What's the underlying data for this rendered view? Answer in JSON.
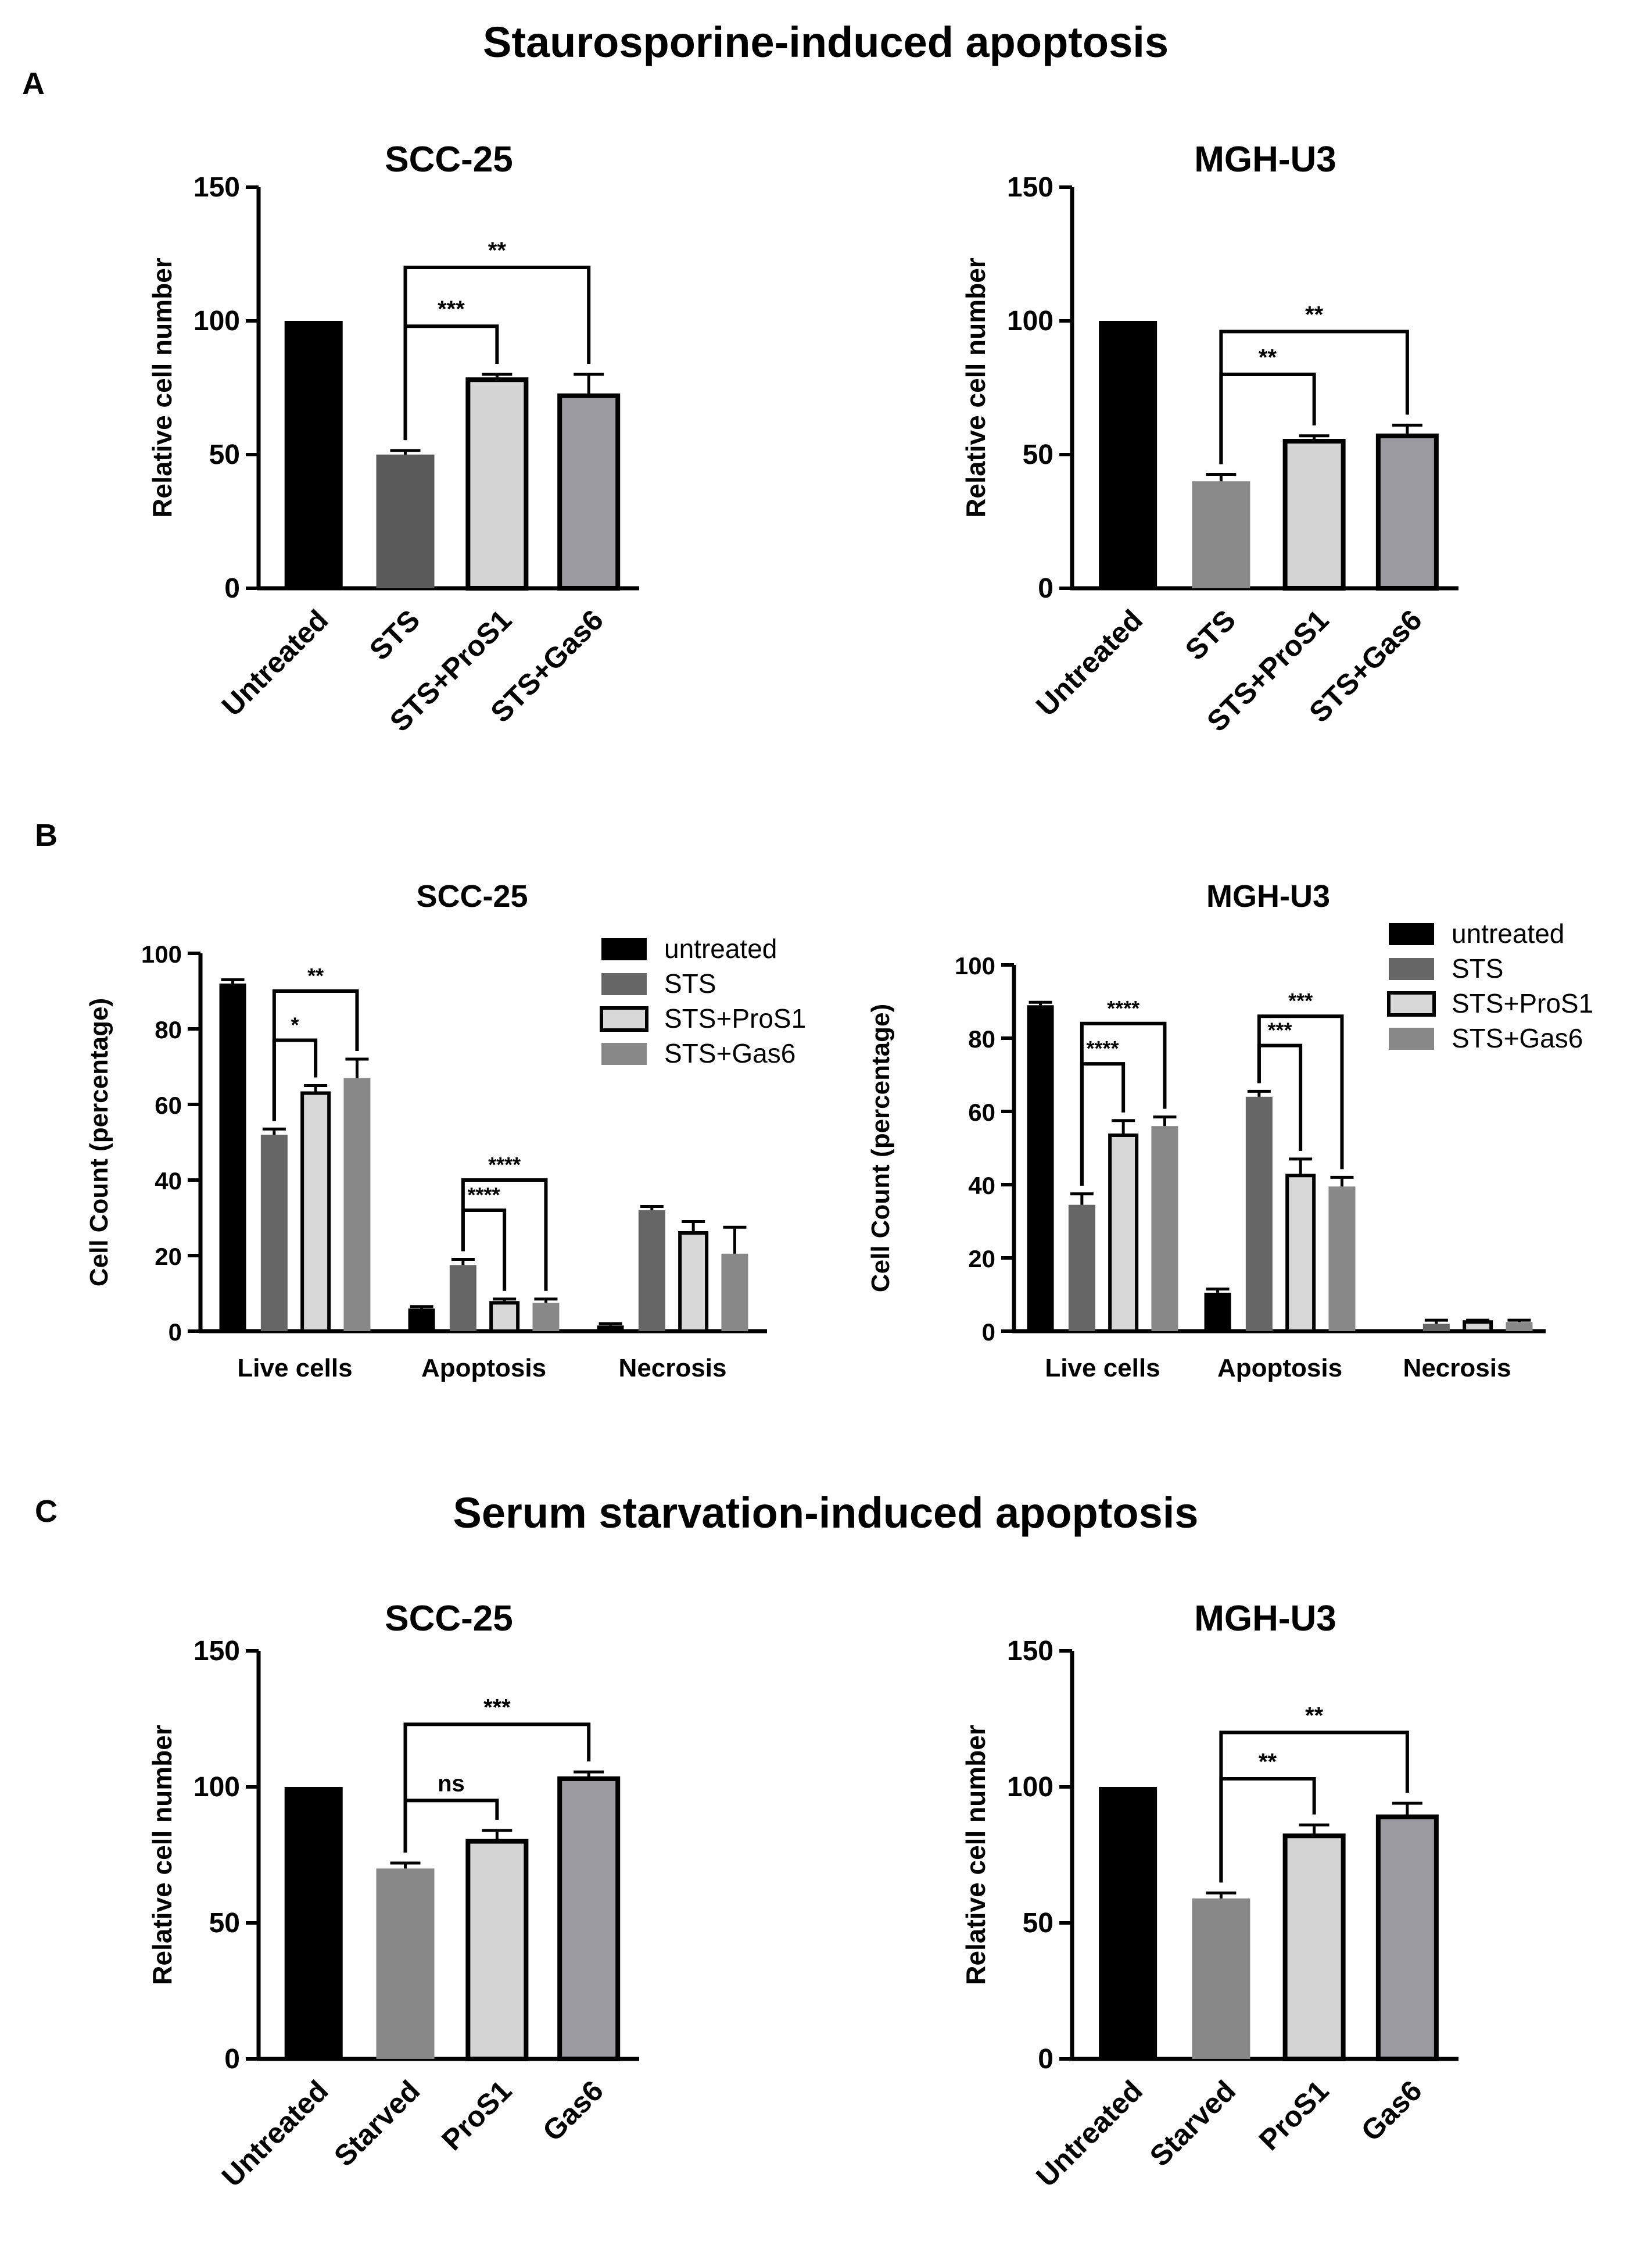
{
  "sections": {
    "A": {
      "letter": "A",
      "title": "Staurosporine-induced apoptosis"
    },
    "B": {
      "letter": "B"
    },
    "C": {
      "letter": "C",
      "title": "Serum starvation-induced apoptosis"
    }
  },
  "chart_data": [
    {
      "id": "A-left",
      "panel": "A",
      "type": "bar",
      "title": "SCC-25",
      "ylabel": "Relative cell number",
      "ylim": [
        0,
        150
      ],
      "yticks": [
        0,
        50,
        100,
        150
      ],
      "categories": [
        "Untreated",
        "STS",
        "STS+ProS1",
        "STS+Gas6"
      ],
      "values": [
        100,
        50,
        78,
        72
      ],
      "errors": [
        0,
        1.5,
        2,
        8
      ],
      "colors": [
        "#000000",
        "#5a5a5a",
        "#d4d4d4",
        "#9a9aa0"
      ],
      "significance": [
        {
          "from": 1,
          "to": 2,
          "label": "***",
          "y": 98
        },
        {
          "from": 1,
          "to": 3,
          "label": "**",
          "y": 120
        }
      ]
    },
    {
      "id": "A-right",
      "panel": "A",
      "type": "bar",
      "title": "MGH-U3",
      "ylabel": "Relative cell number",
      "ylim": [
        0,
        150
      ],
      "yticks": [
        0,
        50,
        100,
        150
      ],
      "categories": [
        "Untreated",
        "STS",
        "STS+ProS1",
        "STS+Gas6"
      ],
      "values": [
        100,
        40,
        55,
        57
      ],
      "errors": [
        0,
        2.5,
        2,
        4
      ],
      "colors": [
        "#000000",
        "#8a8a8a",
        "#d4d4d4",
        "#9a9aa0"
      ],
      "significance": [
        {
          "from": 1,
          "to": 2,
          "label": "**",
          "y": 80
        },
        {
          "from": 1,
          "to": 3,
          "label": "**",
          "y": 96
        }
      ]
    },
    {
      "id": "B-left",
      "panel": "B",
      "type": "grouped-bar",
      "title": "SCC-25",
      "ylabel": "Cell Count (percentage)",
      "ylim": [
        0,
        100
      ],
      "yticks": [
        0,
        20,
        40,
        60,
        80,
        100
      ],
      "categories": [
        "Live cells",
        "Apoptosis",
        "Necrosis"
      ],
      "legend_position": "top-right",
      "series": [
        {
          "name": "untreated",
          "color": "#000000",
          "values": [
            92,
            6,
            1.5
          ],
          "errors": [
            1,
            0.5,
            0.5
          ]
        },
        {
          "name": "STS",
          "color": "#666666",
          "values": [
            52,
            17.5,
            32
          ],
          "errors": [
            1.5,
            1.5,
            1
          ]
        },
        {
          "name": "STS+ProS1",
          "color": "#d8d8d8",
          "values": [
            63,
            7.5,
            26
          ],
          "errors": [
            2,
            1,
            3
          ]
        },
        {
          "name": "STS+Gas6",
          "color": "#888888",
          "values": [
            67,
            7.5,
            20.5
          ],
          "errors": [
            5,
            1,
            7
          ]
        }
      ],
      "significance": [
        {
          "group": 0,
          "from": 1,
          "to": 2,
          "label": "*",
          "y": 77
        },
        {
          "group": 0,
          "from": 1,
          "to": 3,
          "label": "**",
          "y": 90
        },
        {
          "group": 1,
          "from": 1,
          "to": 2,
          "label": "****",
          "y": 32
        },
        {
          "group": 1,
          "from": 1,
          "to": 3,
          "label": "****",
          "y": 40
        }
      ]
    },
    {
      "id": "B-right",
      "panel": "B",
      "type": "grouped-bar",
      "title": "MGH-U3",
      "ylabel": "Cell Count (percentage)",
      "ylim": [
        0,
        100
      ],
      "yticks": [
        0,
        20,
        40,
        60,
        80,
        100
      ],
      "categories": [
        "Live cells",
        "Apoptosis",
        "Necrosis"
      ],
      "legend_position": "top-right",
      "series": [
        {
          "name": "untreated",
          "color": "#000000",
          "values": [
            89,
            10.5,
            0
          ],
          "errors": [
            0.8,
            1,
            0
          ]
        },
        {
          "name": "STS",
          "color": "#666666",
          "values": [
            34.5,
            64,
            2
          ],
          "errors": [
            3,
            1.5,
            1
          ]
        },
        {
          "name": "STS+ProS1",
          "color": "#d8d8d8",
          "values": [
            53.5,
            42.5,
            2.5
          ],
          "errors": [
            4,
            4.5,
            0.5
          ]
        },
        {
          "name": "STS+Gas6",
          "color": "#888888",
          "values": [
            56,
            39.5,
            2.5
          ],
          "errors": [
            2.5,
            2.5,
            0.5
          ]
        }
      ],
      "significance": [
        {
          "group": 0,
          "from": 1,
          "to": 2,
          "label": "****",
          "y": 73
        },
        {
          "group": 0,
          "from": 1,
          "to": 3,
          "label": "****",
          "y": 84
        },
        {
          "group": 1,
          "from": 1,
          "to": 2,
          "label": "***",
          "y": 78
        },
        {
          "group": 1,
          "from": 1,
          "to": 3,
          "label": "***",
          "y": 86
        }
      ]
    },
    {
      "id": "C-left",
      "panel": "C",
      "type": "bar",
      "title": "SCC-25",
      "ylabel": "Relative cell number",
      "ylim": [
        0,
        150
      ],
      "yticks": [
        0,
        50,
        100,
        150
      ],
      "categories": [
        "Untreated",
        "Starved",
        "ProS1",
        "Gas6"
      ],
      "values": [
        100,
        70,
        80,
        103
      ],
      "errors": [
        0,
        2,
        4,
        2.5
      ],
      "colors": [
        "#000000",
        "#888888",
        "#d4d4d4",
        "#9a9aa0"
      ],
      "significance": [
        {
          "from": 1,
          "to": 2,
          "label": "ns",
          "y": 95
        },
        {
          "from": 1,
          "to": 3,
          "label": "***",
          "y": 123
        }
      ]
    },
    {
      "id": "C-right",
      "panel": "C",
      "type": "bar",
      "title": "MGH-U3",
      "ylabel": "Relative cell number",
      "ylim": [
        0,
        150
      ],
      "yticks": [
        0,
        50,
        100,
        150
      ],
      "categories": [
        "Untreated",
        "Starved",
        "ProS1",
        "Gas6"
      ],
      "values": [
        100,
        59,
        82,
        89
      ],
      "errors": [
        0,
        2,
        4,
        5
      ],
      "colors": [
        "#000000",
        "#888888",
        "#d4d4d4",
        "#9a9aa0"
      ],
      "significance": [
        {
          "from": 1,
          "to": 2,
          "label": "**",
          "y": 103
        },
        {
          "from": 1,
          "to": 3,
          "label": "**",
          "y": 120
        }
      ]
    }
  ]
}
